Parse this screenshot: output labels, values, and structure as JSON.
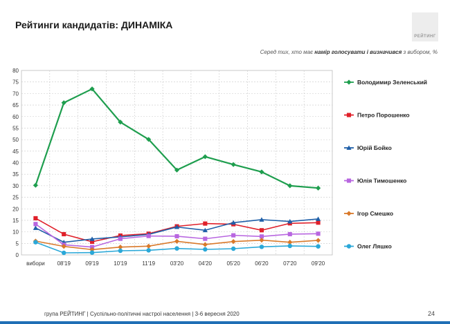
{
  "page": {
    "title": "Рейтинги кандидатів: ДИНАМІКА",
    "subtitle_prefix": "Серед тих, хто має ",
    "subtitle_bold": "намір голосувати і визначився",
    "subtitle_suffix": " з вибором, %",
    "logo_text": "РЕЙТИНГ",
    "footer": "група РЕЙТИНГ |  Суспільно-політичні настрої населення  | 3-6 вересня  2020",
    "page_number": "24"
  },
  "chart_data": {
    "type": "line",
    "categories": [
      "вибори",
      "08'19",
      "09'19",
      "10'19",
      "11'19",
      "03'20",
      "04'20",
      "05'20",
      "06'20",
      "07'20",
      "09'20"
    ],
    "ylim": [
      0,
      80
    ],
    "yticks": [
      0,
      5,
      10,
      15,
      20,
      25,
      30,
      35,
      40,
      45,
      50,
      55,
      60,
      65,
      70,
      75,
      80
    ],
    "grid": true,
    "legend_position": "right",
    "series": [
      {
        "name": "Володимир Зеленський",
        "color": "#1e9e4e",
        "marker": "diamond",
        "values": [
          30.2,
          66,
          72,
          57.6,
          50.1,
          36.8,
          42.6,
          39.2,
          36,
          30,
          29
        ]
      },
      {
        "name": "Петро Порошенко",
        "color": "#e0202a",
        "marker": "square",
        "values": [
          15.9,
          9,
          5.7,
          8.4,
          9.2,
          12.4,
          13.6,
          13.3,
          10.7,
          13.7,
          14
        ]
      },
      {
        "name": "Юрій Бойко",
        "color": "#1f5fa8",
        "marker": "triangle",
        "values": [
          11.7,
          5.5,
          6.9,
          7.8,
          8.9,
          12.1,
          10.7,
          14,
          15.3,
          14.5,
          15.6
        ]
      },
      {
        "name": "Юлія Тимошенко",
        "color": "#b866e0",
        "marker": "square",
        "values": [
          13.4,
          4.4,
          3.4,
          7,
          8.2,
          8.1,
          7,
          8.5,
          8,
          9,
          9.2
        ]
      },
      {
        "name": "Ігор Смешко",
        "color": "#d9792a",
        "marker": "diamond",
        "values": [
          6,
          3.7,
          2.3,
          3.4,
          3.8,
          5.9,
          4.5,
          5.8,
          6.4,
          5.5,
          6.3
        ]
      },
      {
        "name": "Олег Ляшко",
        "color": "#2aa8d8",
        "marker": "circle",
        "values": [
          5.5,
          0.9,
          1,
          1.8,
          2,
          2.8,
          2.4,
          2.7,
          3.5,
          3.9,
          3.7
        ]
      }
    ]
  }
}
